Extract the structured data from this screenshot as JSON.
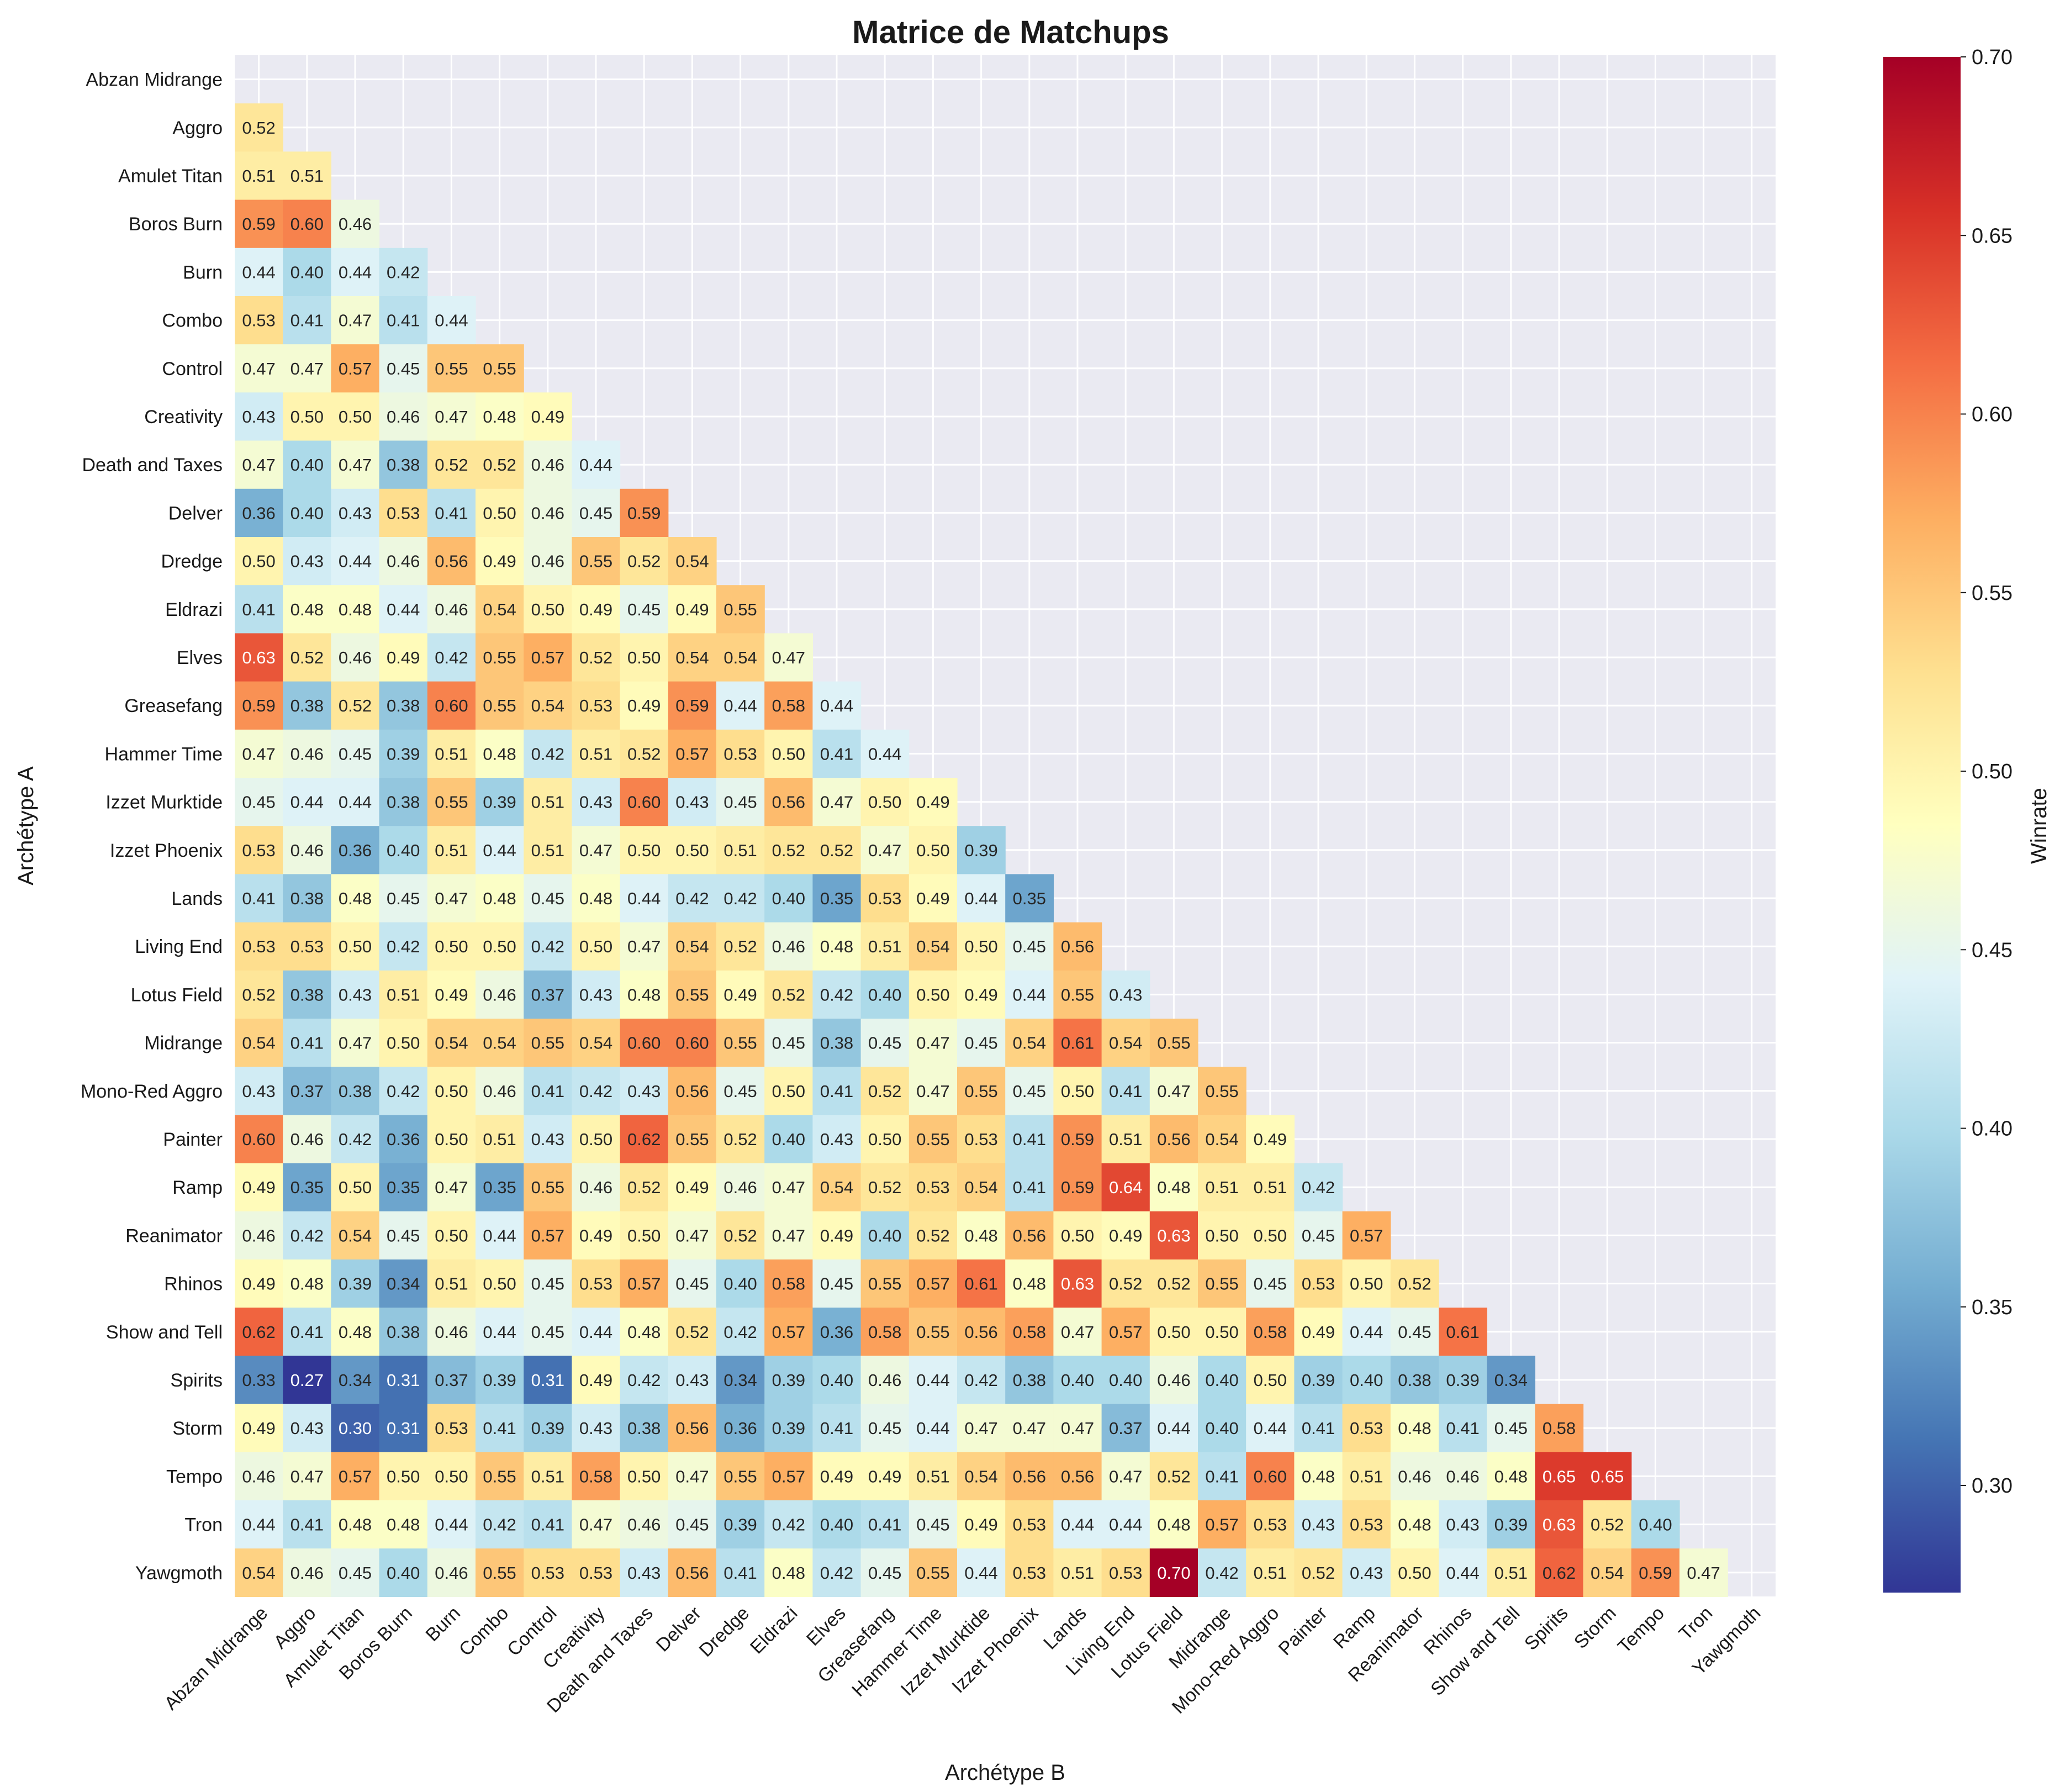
{
  "colors": {
    "plot_background": "#eaeaf2",
    "grid": "#ffffff",
    "colormap": [
      "#313695",
      "#4575b4",
      "#74add1",
      "#abd9e9",
      "#e0f3f8",
      "#ffffbf",
      "#fee090",
      "#fdae61",
      "#f46d43",
      "#d73027",
      "#a50026"
    ]
  },
  "chart_data": {
    "type": "heatmap",
    "title": "Matrice de Matchups",
    "xlabel": "Archétype B",
    "ylabel": "Archétype A",
    "colorbar_label": "Winrate",
    "colorbar_ticks": [
      "0.30",
      "0.35",
      "0.40",
      "0.45",
      "0.50",
      "0.55",
      "0.60",
      "0.65",
      "0.70"
    ],
    "vmin": 0.27,
    "vmax": 0.7,
    "colormap": "RdYlBu_r",
    "mask": "upper triangle and diagonal",
    "categories": [
      "Abzan Midrange",
      "Aggro",
      "Amulet Titan",
      "Boros Burn",
      "Burn",
      "Combo",
      "Control",
      "Creativity",
      "Death and Taxes",
      "Delver",
      "Dredge",
      "Eldrazi",
      "Elves",
      "Greasefang",
      "Hammer Time",
      "Izzet Murktide",
      "Izzet Phoenix",
      "Lands",
      "Living End",
      "Lotus Field",
      "Midrange",
      "Mono-Red Aggro",
      "Painter",
      "Ramp",
      "Reanimator",
      "Rhinos",
      "Show and Tell",
      "Spirits",
      "Storm",
      "Tempo",
      "Tron",
      "Yawgmoth"
    ],
    "values": [
      [],
      [
        0.52
      ],
      [
        0.51,
        0.51
      ],
      [
        0.59,
        0.6,
        0.46
      ],
      [
        0.44,
        0.4,
        0.44,
        0.42
      ],
      [
        0.53,
        0.41,
        0.47,
        0.41,
        0.44
      ],
      [
        0.47,
        0.47,
        0.57,
        0.45,
        0.55,
        0.55
      ],
      [
        0.43,
        0.5,
        0.5,
        0.46,
        0.47,
        0.48,
        0.49
      ],
      [
        0.47,
        0.4,
        0.47,
        0.38,
        0.52,
        0.52,
        0.46,
        0.44
      ],
      [
        0.36,
        0.4,
        0.43,
        0.53,
        0.41,
        0.5,
        0.46,
        0.45,
        0.59
      ],
      [
        0.5,
        0.43,
        0.44,
        0.46,
        0.56,
        0.49,
        0.46,
        0.55,
        0.52,
        0.54
      ],
      [
        0.41,
        0.48,
        0.48,
        0.44,
        0.46,
        0.54,
        0.5,
        0.49,
        0.45,
        0.49,
        0.55
      ],
      [
        0.63,
        0.52,
        0.46,
        0.49,
        0.42,
        0.55,
        0.57,
        0.52,
        0.5,
        0.54,
        0.54,
        0.47
      ],
      [
        0.59,
        0.38,
        0.52,
        0.38,
        0.6,
        0.55,
        0.54,
        0.53,
        0.49,
        0.59,
        0.44,
        0.58,
        0.44
      ],
      [
        0.47,
        0.46,
        0.45,
        0.39,
        0.51,
        0.48,
        0.42,
        0.51,
        0.52,
        0.57,
        0.53,
        0.5,
        0.41,
        0.44
      ],
      [
        0.45,
        0.44,
        0.44,
        0.38,
        0.55,
        0.39,
        0.51,
        0.43,
        0.6,
        0.43,
        0.45,
        0.56,
        0.47,
        0.5,
        0.49
      ],
      [
        0.53,
        0.46,
        0.36,
        0.4,
        0.51,
        0.44,
        0.51,
        0.47,
        0.5,
        0.5,
        0.51,
        0.52,
        0.52,
        0.47,
        0.5,
        0.39
      ],
      [
        0.41,
        0.38,
        0.48,
        0.45,
        0.47,
        0.48,
        0.45,
        0.48,
        0.44,
        0.42,
        0.42,
        0.4,
        0.35,
        0.53,
        0.49,
        0.44,
        0.35
      ],
      [
        0.53,
        0.53,
        0.5,
        0.42,
        0.5,
        0.5,
        0.42,
        0.5,
        0.47,
        0.54,
        0.52,
        0.46,
        0.48,
        0.51,
        0.54,
        0.5,
        0.45,
        0.56
      ],
      [
        0.52,
        0.38,
        0.43,
        0.51,
        0.49,
        0.46,
        0.37,
        0.43,
        0.48,
        0.55,
        0.49,
        0.52,
        0.42,
        0.4,
        0.5,
        0.49,
        0.44,
        0.55,
        0.43
      ],
      [
        0.54,
        0.41,
        0.47,
        0.5,
        0.54,
        0.54,
        0.55,
        0.54,
        0.6,
        0.6,
        0.55,
        0.45,
        0.38,
        0.45,
        0.47,
        0.45,
        0.54,
        0.61,
        0.54,
        0.55
      ],
      [
        0.43,
        0.37,
        0.38,
        0.42,
        0.5,
        0.46,
        0.41,
        0.42,
        0.43,
        0.56,
        0.45,
        0.5,
        0.41,
        0.52,
        0.47,
        0.55,
        0.45,
        0.5,
        0.41,
        0.47,
        0.55
      ],
      [
        0.6,
        0.46,
        0.42,
        0.36,
        0.5,
        0.51,
        0.43,
        0.5,
        0.62,
        0.55,
        0.52,
        0.4,
        0.43,
        0.5,
        0.55,
        0.53,
        0.41,
        0.59,
        0.51,
        0.56,
        0.54,
        0.49
      ],
      [
        0.49,
        0.35,
        0.5,
        0.35,
        0.47,
        0.35,
        0.55,
        0.46,
        0.52,
        0.49,
        0.46,
        0.47,
        0.54,
        0.52,
        0.53,
        0.54,
        0.41,
        0.59,
        0.64,
        0.48,
        0.51,
        0.51,
        0.42
      ],
      [
        0.46,
        0.42,
        0.54,
        0.45,
        0.5,
        0.44,
        0.57,
        0.49,
        0.5,
        0.47,
        0.52,
        0.47,
        0.49,
        0.4,
        0.52,
        0.48,
        0.56,
        0.5,
        0.49,
        0.63,
        0.5,
        0.5,
        0.45,
        0.57
      ],
      [
        0.49,
        0.48,
        0.39,
        0.34,
        0.51,
        0.5,
        0.45,
        0.53,
        0.57,
        0.45,
        0.4,
        0.58,
        0.45,
        0.55,
        0.57,
        0.61,
        0.48,
        0.63,
        0.52,
        0.52,
        0.55,
        0.45,
        0.53,
        0.5,
        0.52
      ],
      [
        0.62,
        0.41,
        0.48,
        0.38,
        0.46,
        0.44,
        0.45,
        0.44,
        0.48,
        0.52,
        0.42,
        0.57,
        0.36,
        0.58,
        0.55,
        0.56,
        0.58,
        0.47,
        0.57,
        0.5,
        0.5,
        0.58,
        0.49,
        0.44,
        0.45,
        0.61
      ],
      [
        0.33,
        0.27,
        0.34,
        0.31,
        0.37,
        0.39,
        0.31,
        0.49,
        0.42,
        0.43,
        0.34,
        0.39,
        0.4,
        0.46,
        0.44,
        0.42,
        0.38,
        0.4,
        0.4,
        0.46,
        0.4,
        0.5,
        0.39,
        0.4,
        0.38,
        0.39,
        0.34
      ],
      [
        0.49,
        0.43,
        0.3,
        0.31,
        0.53,
        0.41,
        0.39,
        0.43,
        0.38,
        0.56,
        0.36,
        0.39,
        0.41,
        0.45,
        0.44,
        0.47,
        0.47,
        0.47,
        0.37,
        0.44,
        0.4,
        0.44,
        0.41,
        0.53,
        0.48,
        0.41,
        0.45,
        0.58
      ],
      [
        0.46,
        0.47,
        0.57,
        0.5,
        0.5,
        0.55,
        0.51,
        0.58,
        0.5,
        0.47,
        0.55,
        0.57,
        0.49,
        0.49,
        0.51,
        0.54,
        0.56,
        0.56,
        0.47,
        0.52,
        0.41,
        0.6,
        0.48,
        0.51,
        0.46,
        0.46,
        0.48,
        0.65,
        0.65
      ],
      [
        0.44,
        0.41,
        0.48,
        0.48,
        0.44,
        0.42,
        0.41,
        0.47,
        0.46,
        0.45,
        0.39,
        0.42,
        0.4,
        0.41,
        0.45,
        0.49,
        0.53,
        0.44,
        0.44,
        0.48,
        0.57,
        0.53,
        0.43,
        0.53,
        0.48,
        0.43,
        0.39,
        0.63,
        0.52,
        0.4
      ],
      [
        0.54,
        0.46,
        0.45,
        0.4,
        0.46,
        0.55,
        0.53,
        0.53,
        0.43,
        0.56,
        0.41,
        0.48,
        0.42,
        0.45,
        0.55,
        0.44,
        0.53,
        0.51,
        0.53,
        0.7,
        0.42,
        0.51,
        0.52,
        0.43,
        0.5,
        0.44,
        0.51,
        0.62,
        0.54,
        0.59,
        0.47
      ]
    ]
  }
}
